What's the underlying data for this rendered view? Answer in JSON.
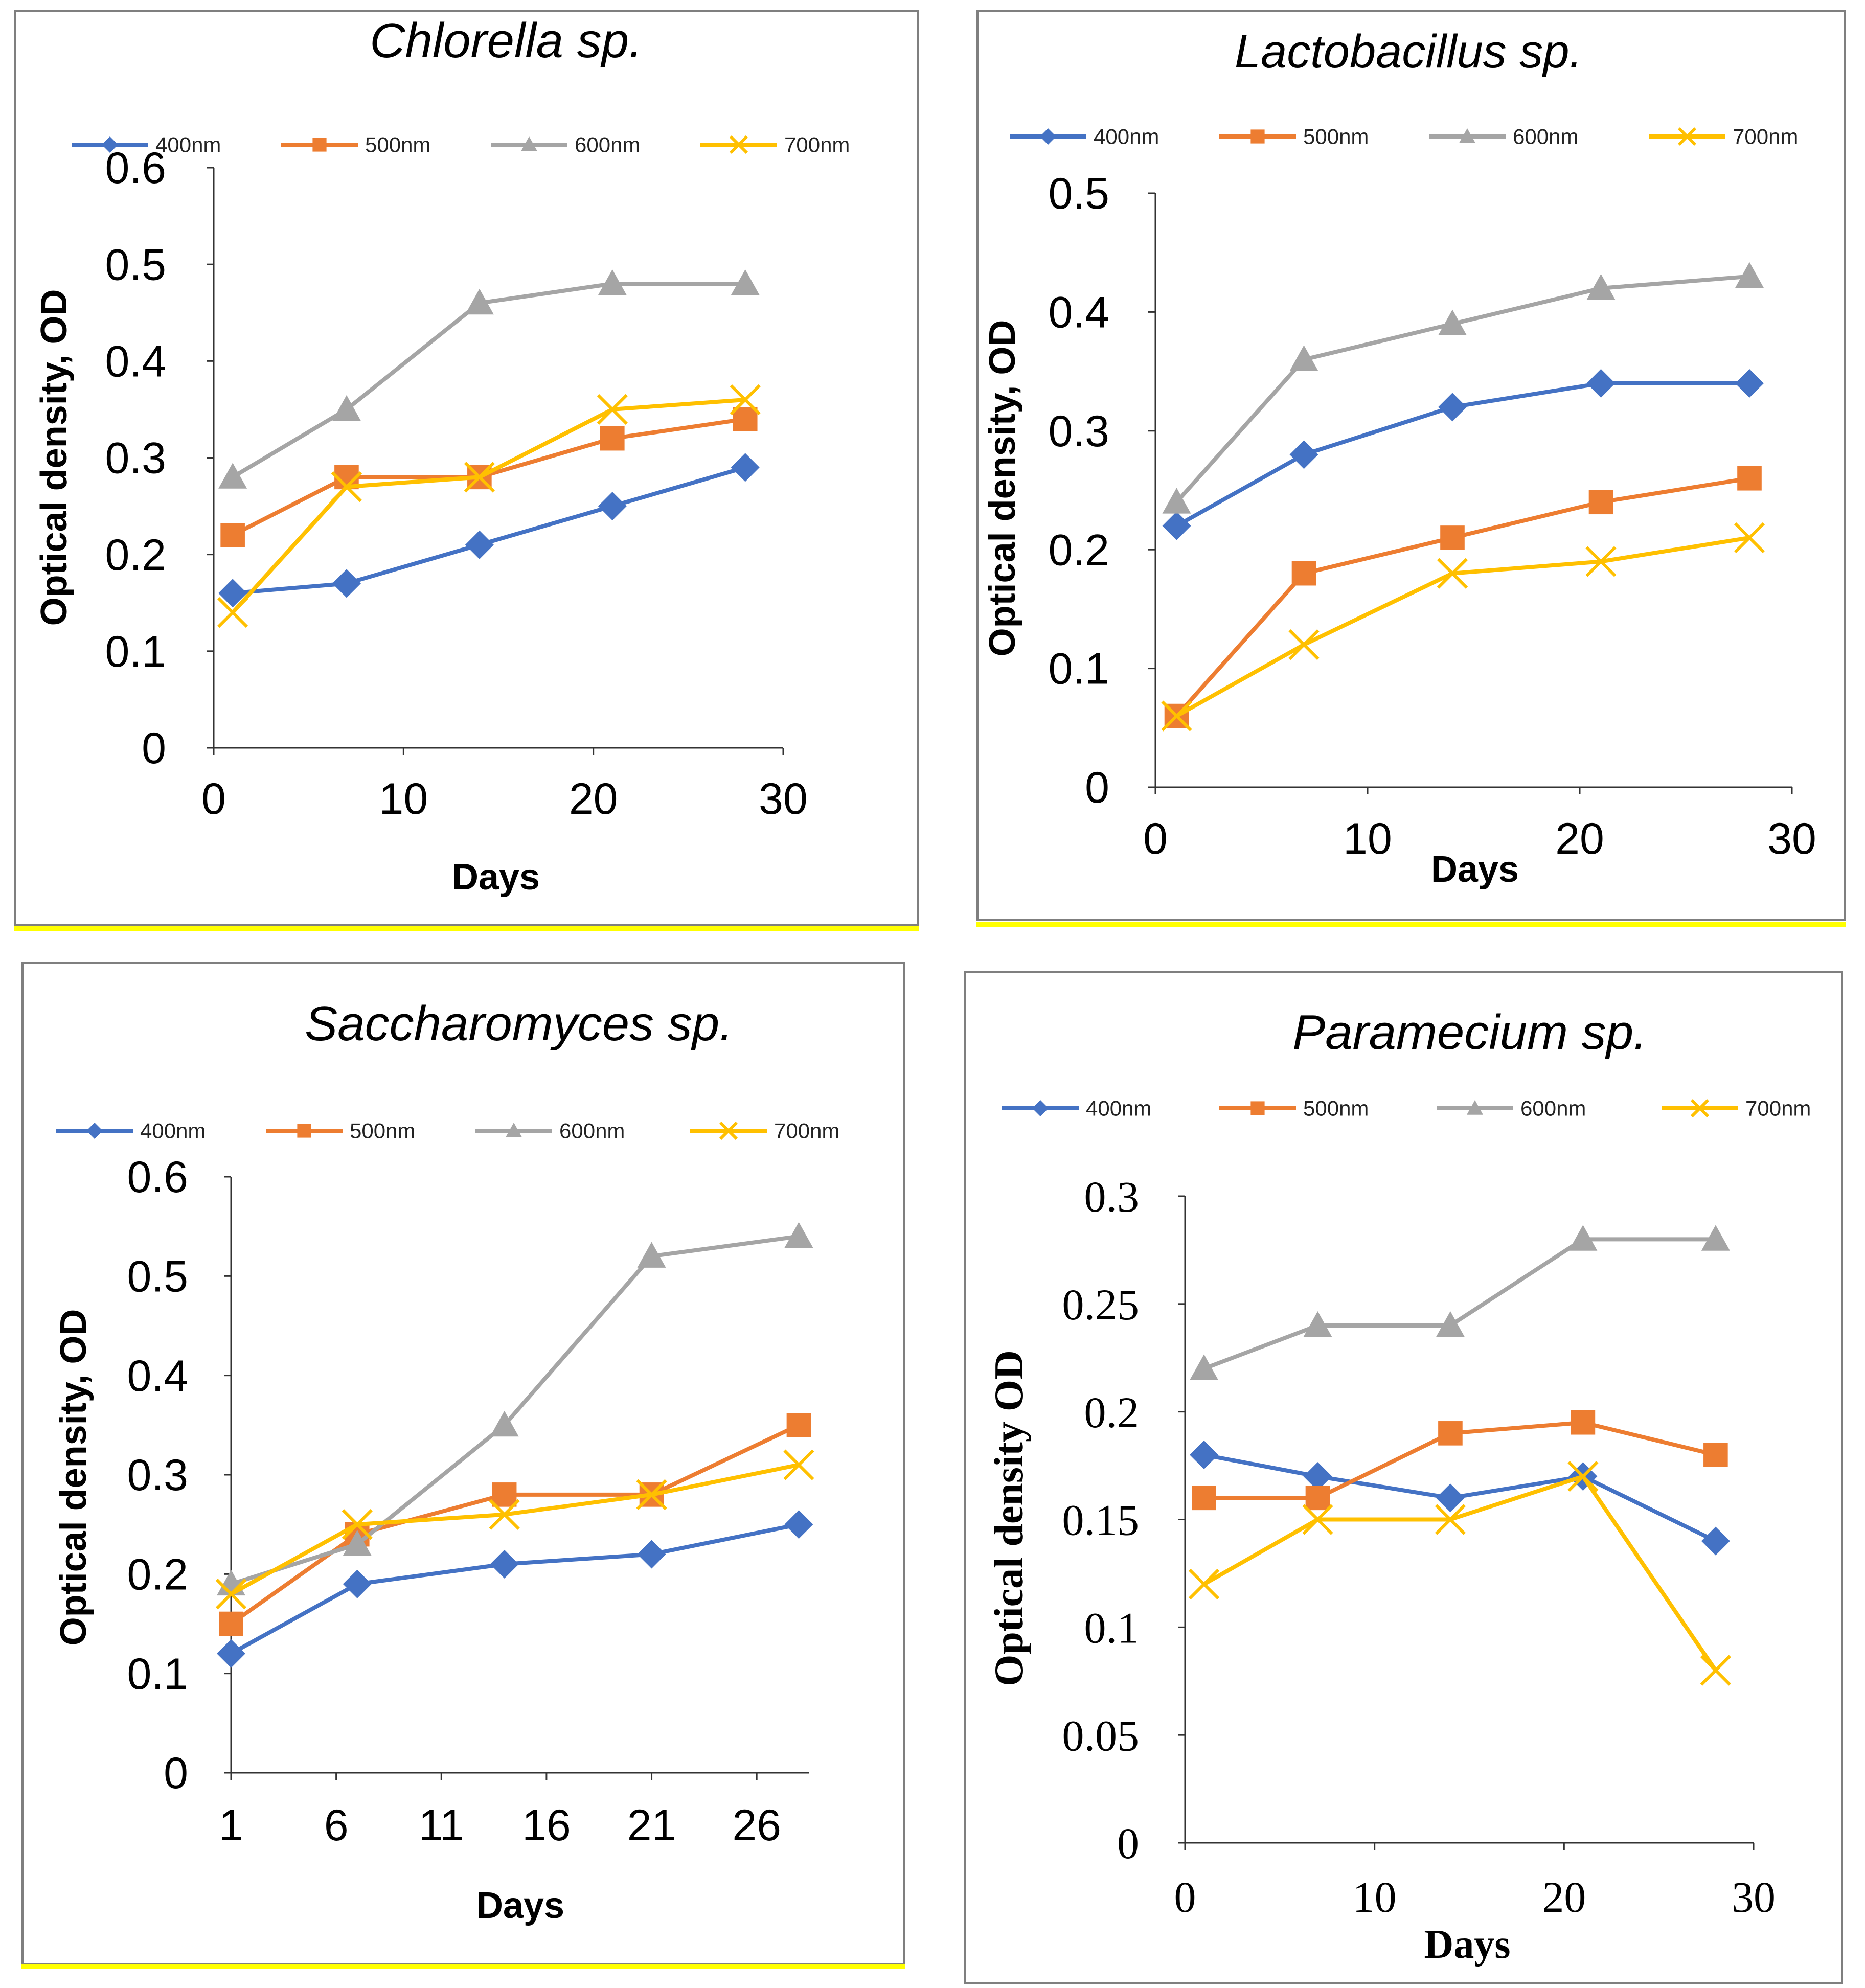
{
  "chart_data": [
    {
      "id": "chlorella",
      "type": "line",
      "title": "Chlorella sp.",
      "xlabel": "Days",
      "ylabel": "Optical density, OD",
      "x": [
        1,
        7,
        14,
        21,
        28
      ],
      "xlim": [
        0,
        30
      ],
      "ylim": [
        0,
        0.6
      ],
      "xticks": [
        0,
        10,
        20,
        30
      ],
      "yticks": [
        0,
        0.1,
        0.2,
        0.3,
        0.4,
        0.5,
        0.6
      ],
      "xtick_labels": [
        "0",
        "10",
        "20",
        "30"
      ],
      "ytick_labels": [
        "0",
        "0.1",
        "0.2",
        "0.3",
        "0.4",
        "0.5",
        "0.6"
      ],
      "legend_position": "top",
      "series": [
        {
          "name": "400nm",
          "values": [
            0.16,
            0.17,
            0.21,
            0.25,
            0.29
          ],
          "color": "#4472c4",
          "marker": "diamond"
        },
        {
          "name": "500nm",
          "values": [
            0.22,
            0.28,
            0.28,
            0.32,
            0.34
          ],
          "color": "#ed7d31",
          "marker": "square"
        },
        {
          "name": "600nm",
          "values": [
            0.28,
            0.35,
            0.46,
            0.48,
            0.48
          ],
          "color": "#a5a5a5",
          "marker": "triangle"
        },
        {
          "name": "700nm",
          "values": [
            0.14,
            0.27,
            0.28,
            0.35,
            0.36
          ],
          "color": "#ffc000",
          "marker": "x"
        }
      ]
    },
    {
      "id": "lactobacillus",
      "type": "line",
      "title": "Lactobacillus sp.",
      "xlabel": "Days",
      "ylabel": "Optical density, OD",
      "x": [
        1,
        7,
        14,
        21,
        28
      ],
      "xlim": [
        0,
        30
      ],
      "ylim": [
        0,
        0.5
      ],
      "xticks": [
        0,
        10,
        20,
        30
      ],
      "yticks": [
        0,
        0.1,
        0.2,
        0.3,
        0.4,
        0.5
      ],
      "xtick_labels": [
        "0",
        "10",
        "20",
        "30"
      ],
      "ytick_labels": [
        "0",
        "0.1",
        "0.2",
        "0.3",
        "0.4",
        "0.5"
      ],
      "legend_position": "top",
      "series": [
        {
          "name": "400nm",
          "values": [
            0.22,
            0.28,
            0.32,
            0.34,
            0.34
          ],
          "color": "#4472c4",
          "marker": "diamond"
        },
        {
          "name": "500nm",
          "values": [
            0.06,
            0.18,
            0.21,
            0.24,
            0.26
          ],
          "color": "#ed7d31",
          "marker": "square"
        },
        {
          "name": "600nm",
          "values": [
            0.24,
            0.36,
            0.39,
            0.42,
            0.43
          ],
          "color": "#a5a5a5",
          "marker": "triangle"
        },
        {
          "name": "700nm",
          "values": [
            0.06,
            0.12,
            0.18,
            0.19,
            0.21
          ],
          "color": "#ffc000",
          "marker": "x"
        }
      ]
    },
    {
      "id": "saccharomyces",
      "type": "line",
      "title": "Saccharomyces sp.",
      "xlabel": "Days",
      "ylabel": "Optical density, OD",
      "x": [
        1,
        7,
        14,
        21,
        28
      ],
      "xlim": [
        1,
        28.5
      ],
      "ylim": [
        0,
        0.6
      ],
      "xticks": [
        1,
        6,
        11,
        16,
        21,
        26
      ],
      "yticks": [
        0,
        0.1,
        0.2,
        0.3,
        0.4,
        0.5,
        0.6
      ],
      "xtick_labels": [
        "1",
        "6",
        "11",
        "16",
        "21",
        "26"
      ],
      "ytick_labels": [
        "0",
        "0.1",
        "0.2",
        "0.3",
        "0.4",
        "0.5",
        "0.6"
      ],
      "legend_position": "top",
      "series": [
        {
          "name": "400nm",
          "values": [
            0.12,
            0.19,
            0.21,
            0.22,
            0.25
          ],
          "color": "#4472c4",
          "marker": "diamond"
        },
        {
          "name": "500nm",
          "values": [
            0.15,
            0.24,
            0.28,
            0.28,
            0.35
          ],
          "color": "#ed7d31",
          "marker": "square"
        },
        {
          "name": "600nm",
          "values": [
            0.19,
            0.23,
            0.35,
            0.52,
            0.54
          ],
          "color": "#a5a5a5",
          "marker": "triangle"
        },
        {
          "name": "700nm",
          "values": [
            0.18,
            0.25,
            0.26,
            0.28,
            0.31
          ],
          "color": "#ffc000",
          "marker": "x"
        }
      ]
    },
    {
      "id": "paramecium",
      "type": "line",
      "title": "Paramecium sp.",
      "xlabel": "Days",
      "ylabel": "Optical density OD",
      "x": [
        1,
        7,
        14,
        21,
        28
      ],
      "xlim": [
        0,
        30
      ],
      "ylim": [
        0,
        0.3
      ],
      "xticks": [
        0,
        10,
        20,
        30
      ],
      "yticks": [
        0,
        0.05,
        0.1,
        0.15,
        0.2,
        0.25,
        0.3
      ],
      "xtick_labels": [
        "0",
        "10",
        "20",
        "30"
      ],
      "ytick_labels": [
        "0",
        "0.05",
        "0.1",
        "0.15",
        "0.2",
        "0.25",
        "0.3"
      ],
      "legend_position": "top",
      "series": [
        {
          "name": "400nm",
          "values": [
            0.18,
            0.17,
            0.16,
            0.17,
            0.14
          ],
          "color": "#4472c4",
          "marker": "diamond"
        },
        {
          "name": "500nm",
          "values": [
            0.16,
            0.16,
            0.19,
            0.195,
            0.18
          ],
          "color": "#ed7d31",
          "marker": "square"
        },
        {
          "name": "600nm",
          "values": [
            0.22,
            0.24,
            0.24,
            0.28,
            0.28
          ],
          "color": "#a5a5a5",
          "marker": "triangle"
        },
        {
          "name": "700nm",
          "values": [
            0.12,
            0.15,
            0.15,
            0.17,
            0.08
          ],
          "color": "#ffc000",
          "marker": "x"
        }
      ]
    }
  ]
}
